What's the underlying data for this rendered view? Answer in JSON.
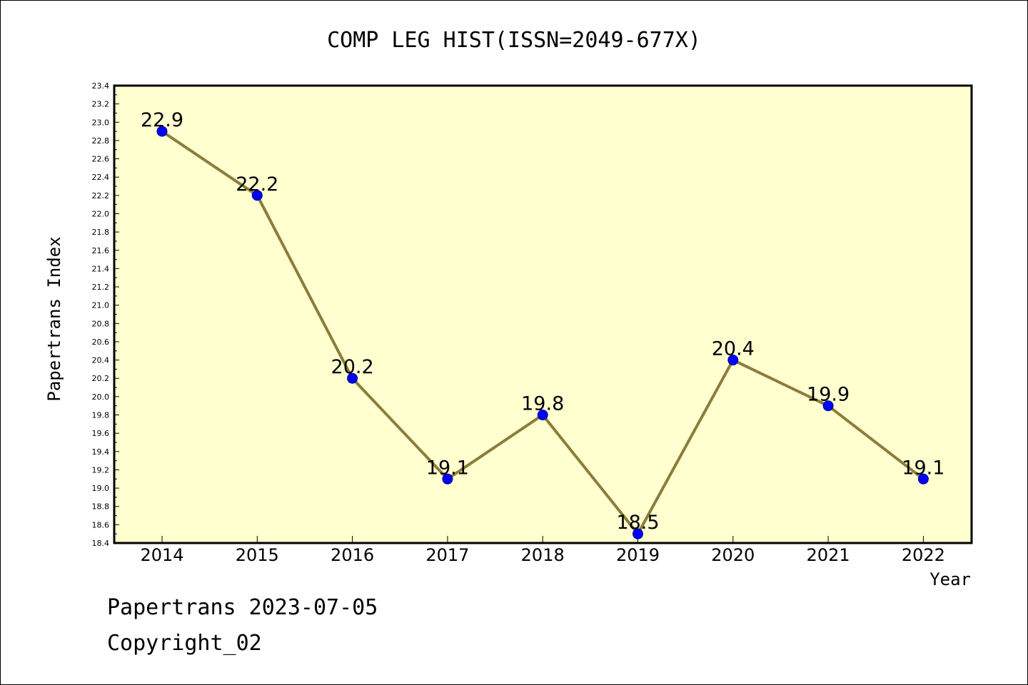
{
  "chart_data": {
    "type": "line",
    "title": "COMP LEG HIST(ISSN=2049-677X)",
    "xlabel": "Year",
    "ylabel": "Papertrans Index",
    "categories": [
      "2014",
      "2015",
      "2016",
      "2017",
      "2018",
      "2019",
      "2020",
      "2021",
      "2022"
    ],
    "series": [
      {
        "values": [
          22.9,
          22.2,
          20.2,
          19.1,
          19.8,
          18.5,
          20.4,
          19.9,
          19.1
        ]
      }
    ],
    "data_labels": [
      "22.9",
      "22.2",
      "20.2",
      "19.1",
      "19.8",
      "18.5",
      "20.4",
      "19.9",
      "19.1"
    ],
    "ylim": [
      18.4,
      23.4
    ],
    "yticks": [
      "18.4",
      "18.6",
      "18.8",
      "19.0",
      "19.2",
      "19.4",
      "19.6",
      "19.8",
      "20.0",
      "20.2",
      "20.4",
      "20.6",
      "20.8",
      "21.0",
      "21.2",
      "21.4",
      "21.6",
      "21.8",
      "22.0",
      "22.2",
      "22.4",
      "22.6",
      "22.8",
      "23.0",
      "23.2",
      "23.4"
    ],
    "grid": false,
    "colors": {
      "plot_background": "#ffffd0",
      "line": "#8b7d3a",
      "marker": "#0000ff"
    }
  },
  "footer": {
    "line1": "Papertrans 2023-07-05",
    "line2": "Copyright_02"
  }
}
